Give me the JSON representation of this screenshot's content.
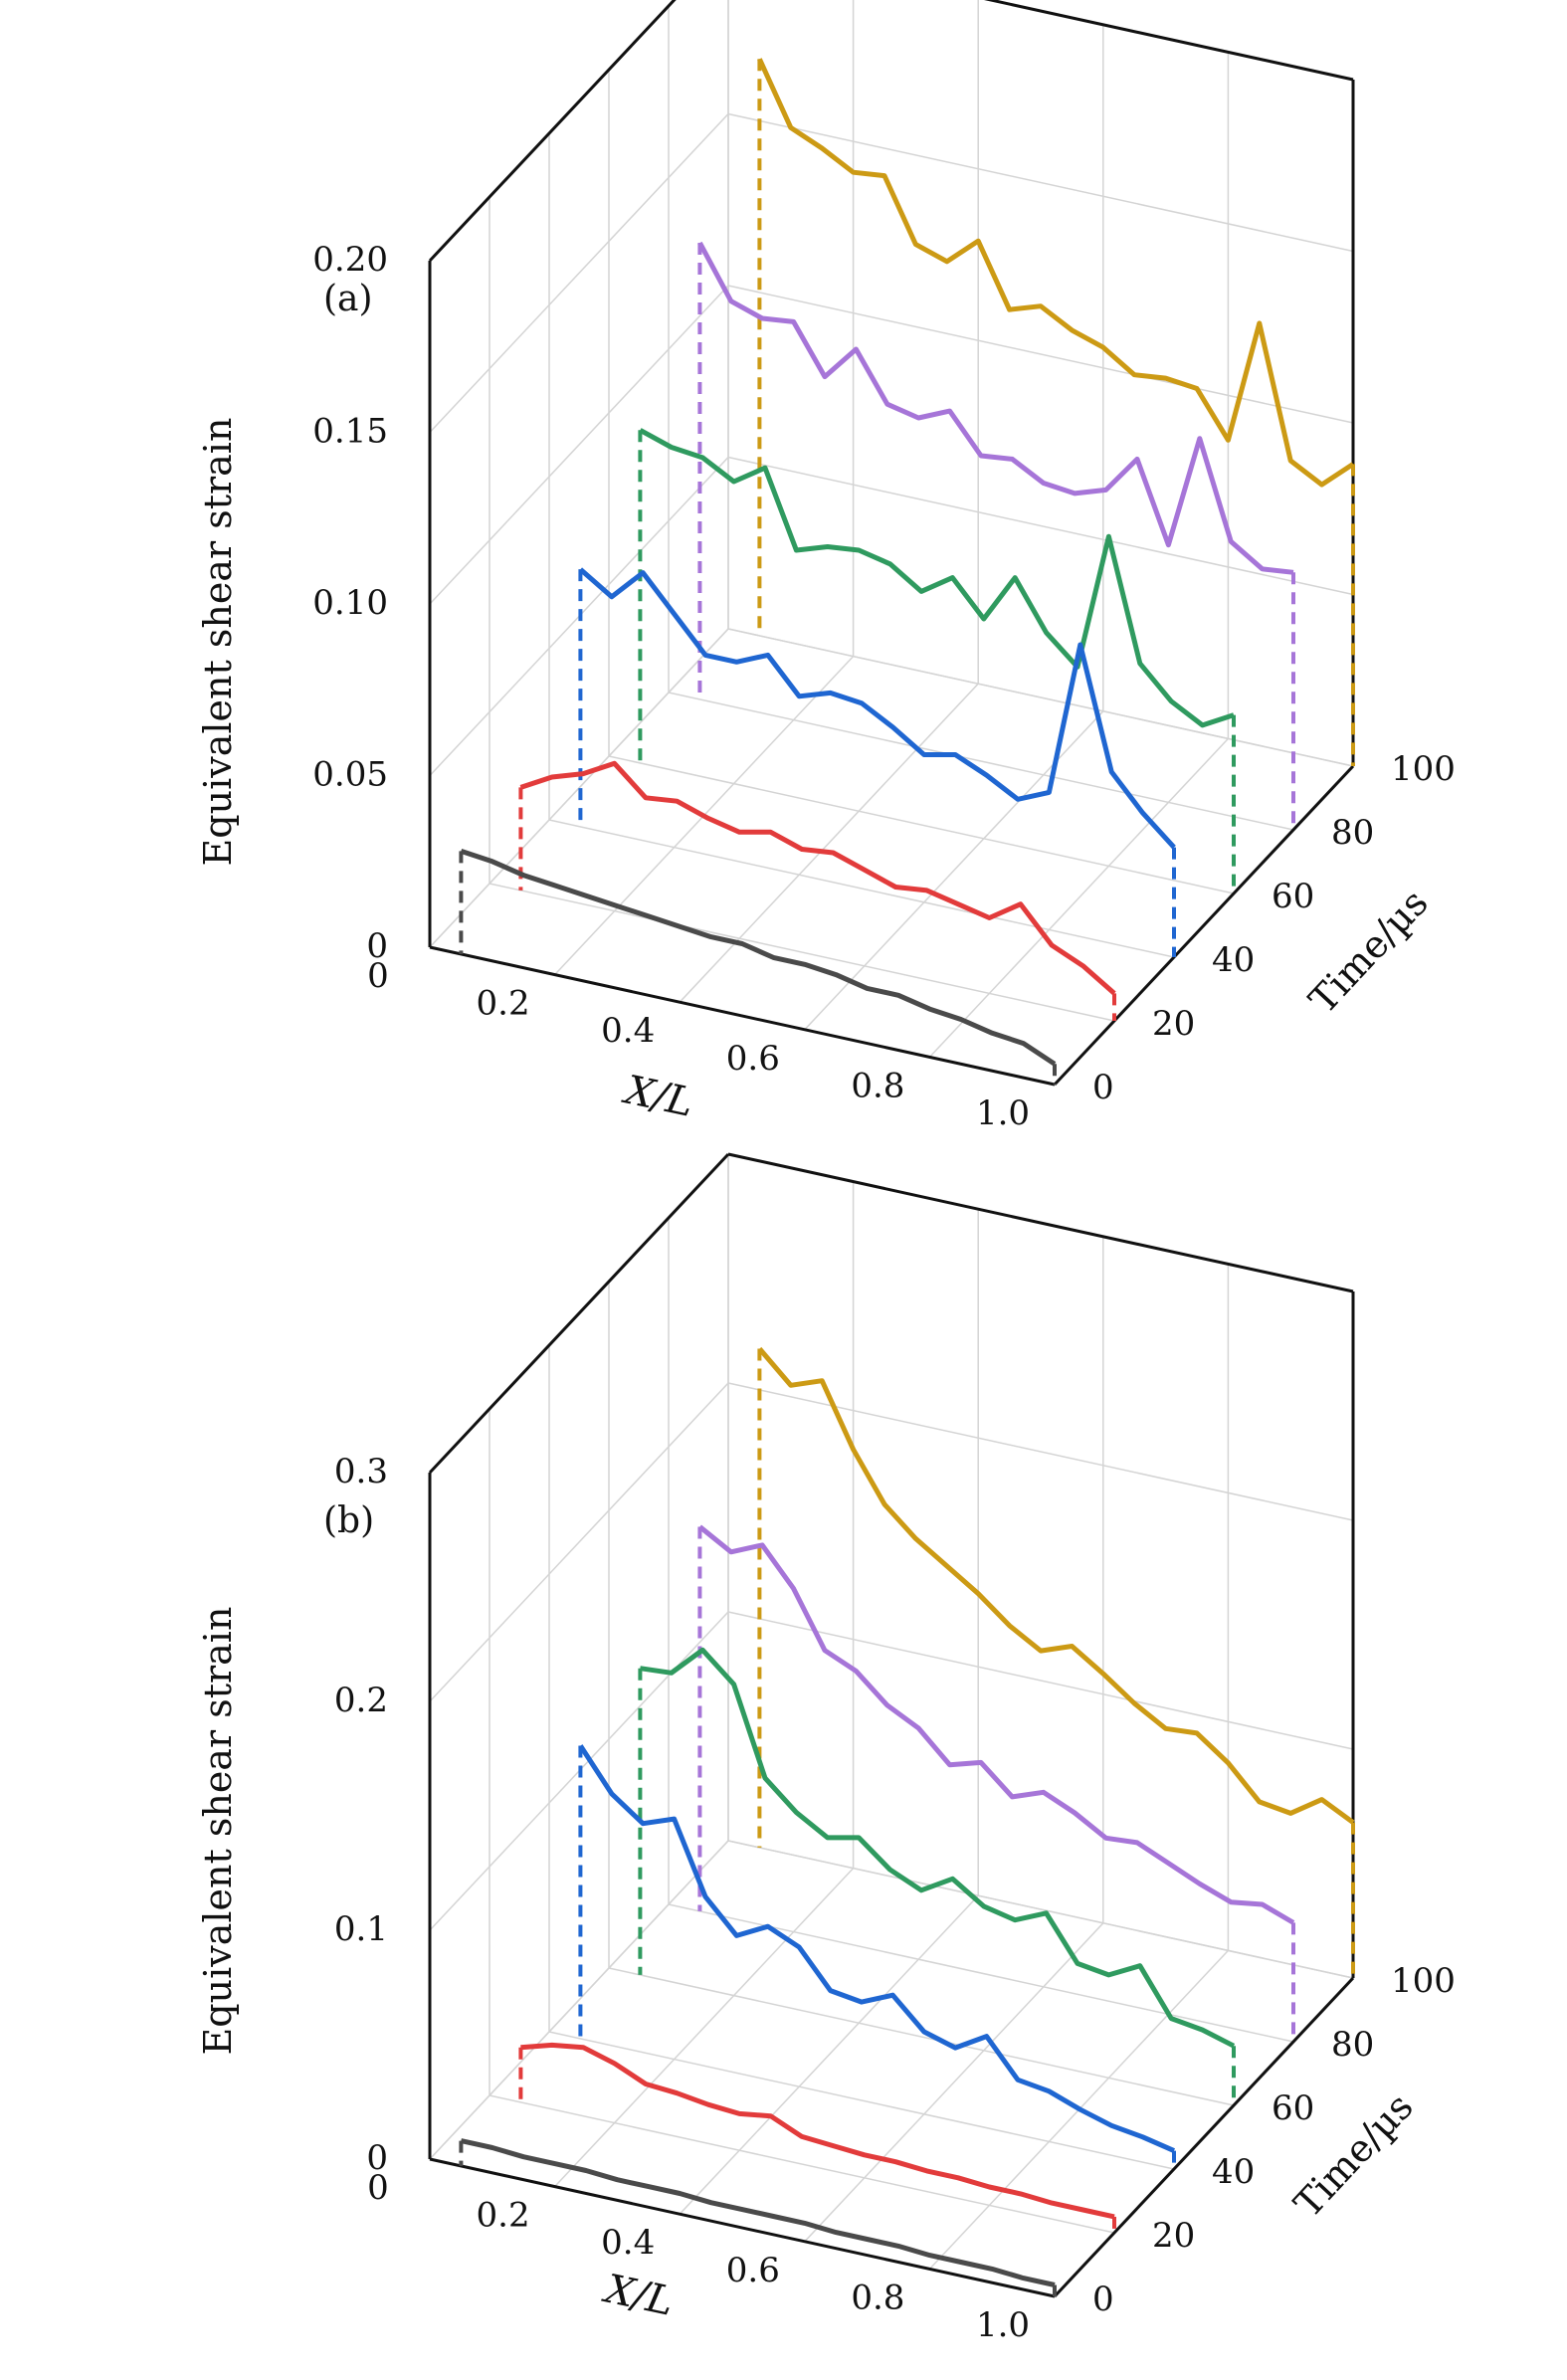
{
  "colors": {
    "t0": "#4a4a4a",
    "t20": "#e23b3b",
    "t40": "#1f66d1",
    "t60": "#2f9a5f",
    "t80": "#a675d8",
    "t100": "#cc9a14",
    "frame": "#111111",
    "grid": "#d4d4d4"
  },
  "chart_data": [
    {
      "type": "line3d",
      "panel_label": "(a)",
      "zlabel": "Equivalent shear strain",
      "xlabel": "X/L",
      "ylabel": "Time/µs",
      "xlim": [
        0,
        1.0
      ],
      "ylim": [
        0,
        100
      ],
      "zlim": [
        0,
        0.2
      ],
      "x_ticks": [
        "0",
        "0.2",
        "0.4",
        "0.6",
        "0.8",
        "1.0"
      ],
      "y_ticks": [
        "0",
        "20",
        "40",
        "60",
        "80",
        "100"
      ],
      "z_ticks": [
        "0",
        "0.05",
        "0.10",
        "0.15",
        "0.20"
      ],
      "x": [
        0.05,
        0.1,
        0.15,
        0.2,
        0.25,
        0.3,
        0.35,
        0.4,
        0.45,
        0.5,
        0.55,
        0.6,
        0.65,
        0.7,
        0.75,
        0.8,
        0.85,
        0.9,
        0.95,
        1.0
      ],
      "series": [
        {
          "time": 0,
          "color_key": "t0",
          "values": [
            0.03,
            0.029,
            0.027,
            0.026,
            0.025,
            0.024,
            0.023,
            0.022,
            0.021,
            0.021,
            0.019,
            0.019,
            0.018,
            0.016,
            0.016,
            0.014,
            0.013,
            0.011,
            0.01,
            0.006
          ]
        },
        {
          "time": 20,
          "color_key": "t20",
          "values": [
            0.03,
            0.035,
            0.038,
            0.043,
            0.035,
            0.036,
            0.033,
            0.031,
            0.033,
            0.03,
            0.031,
            0.028,
            0.025,
            0.026,
            0.024,
            0.022,
            0.028,
            0.018,
            0.014,
            0.008
          ]
        },
        {
          "time": 40,
          "color_key": "t40",
          "values": [
            0.075,
            0.069,
            0.078,
            0.068,
            0.058,
            0.058,
            0.062,
            0.052,
            0.055,
            0.054,
            0.049,
            0.043,
            0.045,
            0.041,
            0.036,
            0.04,
            0.085,
            0.05,
            0.04,
            0.032
          ]
        },
        {
          "time": 60,
          "color_key": "t60",
          "values": [
            0.097,
            0.094,
            0.093,
            0.088,
            0.094,
            0.072,
            0.075,
            0.076,
            0.074,
            0.068,
            0.074,
            0.064,
            0.078,
            0.064,
            0.056,
            0.096,
            0.061,
            0.052,
            0.047,
            0.052
          ]
        },
        {
          "time": 80,
          "color_key": "t80",
          "values": [
            0.133,
            0.118,
            0.115,
            0.116,
            0.102,
            0.112,
            0.098,
            0.096,
            0.1,
            0.089,
            0.09,
            0.085,
            0.084,
            0.087,
            0.098,
            0.075,
            0.108,
            0.08,
            0.074,
            0.075
          ]
        },
        {
          "time": 100,
          "color_key": "t100",
          "values": [
            0.168,
            0.15,
            0.146,
            0.141,
            0.142,
            0.124,
            0.121,
            0.129,
            0.111,
            0.114,
            0.109,
            0.106,
            0.1,
            0.101,
            0.1,
            0.087,
            0.123,
            0.085,
            0.08,
            0.088
          ]
        }
      ]
    },
    {
      "type": "line3d",
      "panel_label": "(b)",
      "zlabel": "Equivalent shear strain",
      "xlabel": "X/L",
      "ylabel": "Time/µs",
      "xlim": [
        0,
        1.0
      ],
      "ylim": [
        0,
        100
      ],
      "zlim": [
        0,
        0.3
      ],
      "x_ticks": [
        "0",
        "0.2",
        "0.4",
        "0.6",
        "0.8",
        "1.0"
      ],
      "y_ticks": [
        "0",
        "20",
        "40",
        "60",
        "80",
        "100"
      ],
      "z_ticks": [
        "0",
        "0.1",
        "0.2",
        "0.3"
      ],
      "x": [
        0.05,
        0.1,
        0.15,
        0.2,
        0.25,
        0.3,
        0.35,
        0.4,
        0.45,
        0.5,
        0.55,
        0.6,
        0.65,
        0.7,
        0.75,
        0.8,
        0.85,
        0.9,
        0.95,
        1.0
      ],
      "series": [
        {
          "time": 0,
          "color_key": "t0",
          "values": [
            0.011,
            0.011,
            0.01,
            0.01,
            0.01,
            0.009,
            0.009,
            0.009,
            0.008,
            0.008,
            0.008,
            0.008,
            0.007,
            0.007,
            0.007,
            0.006,
            0.006,
            0.006,
            0.005,
            0.005
          ]
        },
        {
          "time": 20,
          "color_key": "t20",
          "values": [
            0.024,
            0.028,
            0.03,
            0.026,
            0.02,
            0.019,
            0.017,
            0.016,
            0.018,
            0.012,
            0.011,
            0.01,
            0.01,
            0.009,
            0.009,
            0.008,
            0.008,
            0.007,
            0.007,
            0.007
          ]
        },
        {
          "time": 40,
          "color_key": "t40",
          "values": [
            0.128,
            0.11,
            0.1,
            0.105,
            0.074,
            0.06,
            0.067,
            0.061,
            0.045,
            0.043,
            0.049,
            0.036,
            0.032,
            0.04,
            0.024,
            0.022,
            0.017,
            0.013,
            0.011,
            0.008
          ]
        },
        {
          "time": 60,
          "color_key": "t60",
          "values": [
            0.134,
            0.135,
            0.148,
            0.136,
            0.098,
            0.086,
            0.078,
            0.081,
            0.07,
            0.064,
            0.072,
            0.063,
            0.06,
            0.066,
            0.047,
            0.045,
            0.052,
            0.032,
            0.03,
            0.026
          ]
        },
        {
          "time": 80,
          "color_key": "t80",
          "values": [
            0.168,
            0.16,
            0.166,
            0.15,
            0.126,
            0.12,
            0.108,
            0.101,
            0.088,
            0.092,
            0.08,
            0.085,
            0.079,
            0.071,
            0.072,
            0.066,
            0.06,
            0.055,
            0.057,
            0.052
          ]
        },
        {
          "time": 100,
          "color_key": "t100",
          "values": [
            0.218,
            0.205,
            0.21,
            0.183,
            0.162,
            0.15,
            0.141,
            0.132,
            0.121,
            0.113,
            0.118,
            0.109,
            0.099,
            0.091,
            0.092,
            0.082,
            0.068,
            0.066,
            0.075,
            0.068
          ]
        }
      ]
    }
  ]
}
